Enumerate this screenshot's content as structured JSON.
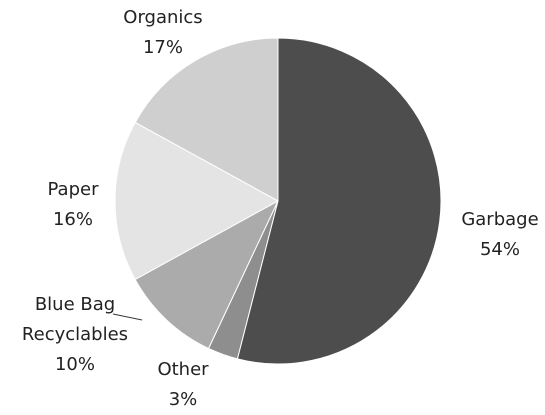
{
  "chart_data": {
    "type": "pie",
    "categories": [
      "Garbage",
      "Other",
      "Blue Bag Recyclables",
      "Paper",
      "Organics"
    ],
    "values": [
      54,
      3,
      10,
      16,
      17
    ],
    "value_labels": [
      "54%",
      "3%",
      "10%",
      "16%",
      "17%"
    ],
    "colors": [
      "#4d4d4d",
      "#8e8e8e",
      "#ababab",
      "#e4e4e4",
      "#cfcfcf"
    ]
  }
}
